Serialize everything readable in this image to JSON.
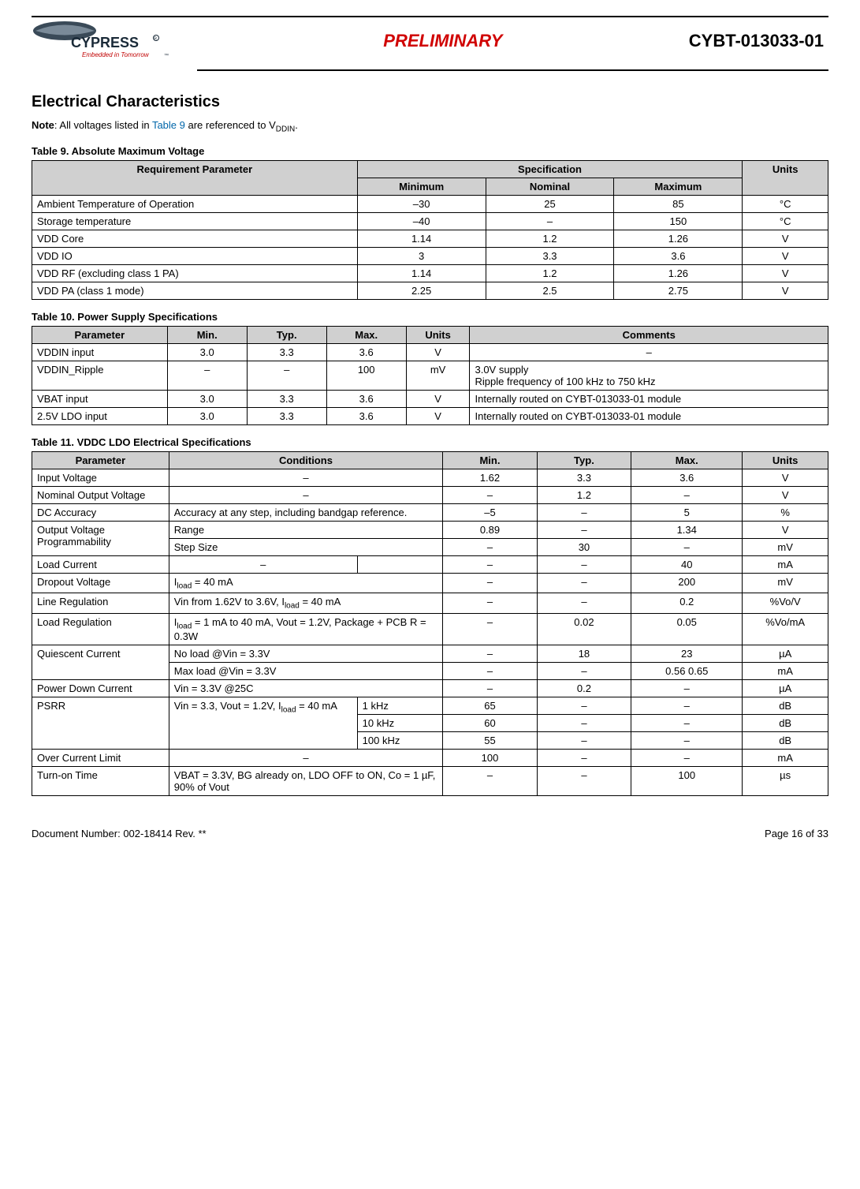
{
  "header": {
    "logo_brand": "CYPRESS",
    "logo_tagline": "Embedded in Tomorrow",
    "preliminary": "PRELIMINARY",
    "part_number": "CYBT-013033-01"
  },
  "section_title": "Electrical Characteristics",
  "note_prefix": "Note",
  "note_body_a": ": All voltages listed in ",
  "note_link": "Table 9",
  "note_body_b": " are referenced to V",
  "note_sub": "DDIN",
  "note_body_c": ".",
  "table9": {
    "caption": "Table 9.  Absolute Maximum Voltage",
    "head_param": "Requirement Parameter",
    "head_spec": "Specification",
    "head_min": "Minimum",
    "head_nom": "Nominal",
    "head_max": "Maximum",
    "head_units": "Units",
    "rows": [
      {
        "p": "Ambient Temperature of Operation",
        "min": "–30",
        "nom": "25",
        "max": "85",
        "u": "°C"
      },
      {
        "p": "Storage temperature",
        "min": "–40",
        "nom": "–",
        "max": "150",
        "u": "°C"
      },
      {
        "p": "VDD Core",
        "min": "1.14",
        "nom": "1.2",
        "max": "1.26",
        "u": "V"
      },
      {
        "p": "VDD IO",
        "min": "3",
        "nom": "3.3",
        "max": "3.6",
        "u": "V"
      },
      {
        "p": "VDD RF (excluding class 1 PA)",
        "min": "1.14",
        "nom": "1.2",
        "max": "1.26",
        "u": "V"
      },
      {
        "p": "VDD PA (class 1 mode)",
        "min": "2.25",
        "nom": "2.5",
        "max": "2.75",
        "u": "V"
      }
    ]
  },
  "table10": {
    "caption": "Table 10.  Power Supply Specifications",
    "head_param": "Parameter",
    "head_min": "Min.",
    "head_typ": "Typ.",
    "head_max": "Max.",
    "head_units": "Units",
    "head_comments": "Comments",
    "rows": [
      {
        "p": "VDDIN input",
        "min": "3.0",
        "typ": "3.3",
        "max": "3.6",
        "u": "V",
        "c": "–"
      },
      {
        "p": "VDDIN_Ripple",
        "min": "–",
        "typ": "–",
        "max": "100",
        "u": "mV",
        "c": "3.0V supply\nRipple frequency of 100 kHz to 750 kHz"
      },
      {
        "p": "VBAT input",
        "min": "3.0",
        "typ": "3.3",
        "max": "3.6",
        "u": "V",
        "c": "Internally routed on CYBT-013033-01 module"
      },
      {
        "p": "2.5V LDO input",
        "min": "3.0",
        "typ": "3.3",
        "max": "3.6",
        "u": "V",
        "c": "Internally routed on CYBT-013033-01 module"
      }
    ]
  },
  "table11": {
    "caption": "Table 11.  VDDC LDO Electrical Specifications",
    "head_param": "Parameter",
    "head_cond": "Conditions",
    "head_min": "Min.",
    "head_typ": "Typ.",
    "head_max": "Max.",
    "head_units": "Units",
    "col_widths": {
      "param": "16%",
      "cond": "32%",
      "min": "11%",
      "typ": "11%",
      "max": "13%",
      "units": "10%"
    },
    "r_input_voltage": {
      "p": "Input Voltage",
      "cond": "–",
      "min": "1.62",
      "typ": "3.3",
      "max": "3.6",
      "u": "V"
    },
    "r_nom_out": {
      "p": "Nominal Output Voltage",
      "cond": "–",
      "min": "–",
      "typ": "1.2",
      "max": "–",
      "u": "V"
    },
    "r_dc_acc": {
      "p": "DC Accuracy",
      "cond": "Accuracy at any step, including bandgap reference.",
      "min": "–5",
      "typ": "–",
      "max": "5",
      "u": "%"
    },
    "r_ovp_label": "Output Voltage Programmability",
    "r_ovp_range": {
      "cond": "Range",
      "min": "0.89",
      "typ": "–",
      "max": "1.34",
      "u": "V"
    },
    "r_ovp_step": {
      "cond": "Step Size",
      "min": "–",
      "typ": "30",
      "max": "–",
      "u": "mV"
    },
    "r_load_current": {
      "p": "Load Current",
      "cond": "–",
      "min": "–",
      "typ": "–",
      "max": "40",
      "u": "mA"
    },
    "r_dropout_pre": "I",
    "r_dropout_sub": "load",
    "r_dropout_post": " = 40 mA",
    "r_dropout": {
      "p": "Dropout Voltage",
      "min": "–",
      "typ": "–",
      "max": "200",
      "u": "mV"
    },
    "r_linereg_pre": "Vin from 1.62V to 3.6V, I",
    "r_linereg_post": " = 40 mA",
    "r_linereg": {
      "p": "Line Regulation",
      "min": "–",
      "typ": "–",
      "max": "0.2",
      "u": "%Vo/V"
    },
    "r_loadreg_pre": "I",
    "r_loadreg_mid": " = 1 mA to 40 mA, Vout = 1.2V, Package + PCB R = 0.3W",
    "r_loadreg": {
      "p": "Load Regulation",
      "min": "–",
      "typ": "0.02",
      "max": "0.05",
      "u": "%Vo/mA"
    },
    "r_quiescent_label": "Quiescent Current",
    "r_quiescent_noload": {
      "cond": "No load @Vin = 3.3V",
      "min": "–",
      "typ": "18",
      "max": "23",
      "u": "µA"
    },
    "r_quiescent_maxload": {
      "cond": "Max load @Vin = 3.3V",
      "min": "–",
      "typ": "–",
      "max": "0.56 0.65",
      "u": "mA"
    },
    "r_powerdown": {
      "p": "Power Down Current",
      "cond": "Vin = 3.3V @25C",
      "min": "–",
      "typ": "0.2",
      "max": "–",
      "u": "µA"
    },
    "r_psrr_label": "PSRR",
    "r_psrr_cond_pre": "Vin = 3.3, Vout = 1.2V, I",
    "r_psrr_cond_post": " = 40 mA",
    "r_psrr_1k": {
      "f": "1 kHz",
      "min": "65",
      "typ": "–",
      "max": "–",
      "u": "dB"
    },
    "r_psrr_10k": {
      "f": "10 kHz",
      "min": "60",
      "typ": "–",
      "max": "–",
      "u": "dB"
    },
    "r_psrr_100k": {
      "f": "100 kHz",
      "min": "55",
      "typ": "–",
      "max": "–",
      "u": "dB"
    },
    "r_ocl": {
      "p": "Over Current Limit",
      "cond": "–",
      "min": "100",
      "typ": "–",
      "max": "–",
      "u": "mA"
    },
    "r_turnon": {
      "p": "Turn-on Time",
      "cond": "VBAT = 3.3V, BG already on, LDO OFF to ON, Co = 1 µF, 90% of Vout",
      "min": "–",
      "typ": "–",
      "max": "100",
      "u": "µs"
    }
  },
  "footer": {
    "docnum": "Document Number: 002-18414 Rev. **",
    "page": "Page 16 of 33"
  }
}
